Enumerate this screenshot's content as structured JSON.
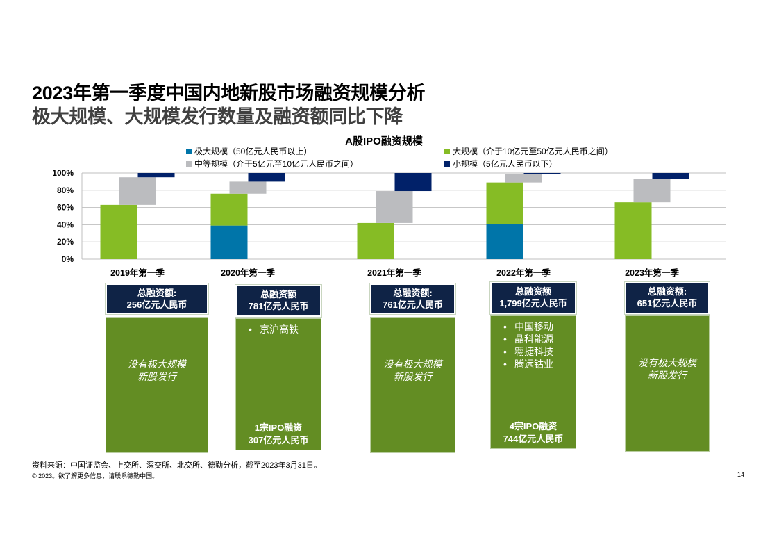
{
  "page": {
    "title": "2023年第一季度中国内地新股市场融资规模分析",
    "subtitle": "极大规模、大规模发行数量及融资额同比下降",
    "source": "资料来源：中国证监会、上交所、深交所、北交所、德勤分析，截至2023年3月31日。",
    "copyright": "© 2023。欲了解更多信息，请联系德勤中国。",
    "page_number": "14"
  },
  "chart_data": {
    "type": "bar",
    "subtype": "stacked-waterfall-100",
    "title": "A股IPO融资规模",
    "categories": [
      "2019年第一季",
      "2020年第一季",
      "2021年第一季",
      "2022年第一季",
      "2023年第一季"
    ],
    "ylim": [
      0,
      100
    ],
    "yticks": [
      "0%",
      "20%",
      "40%",
      "60%",
      "80%",
      "100%"
    ],
    "grid": true,
    "legend_position": "top",
    "series": [
      {
        "name": "极大规模（50亿元人民币以上）",
        "color": "#0075a9",
        "values": [
          0,
          39,
          0,
          41,
          0
        ]
      },
      {
        "name": "大规模（介于10亿元至50亿元人民币之间）",
        "color": "#86bc25",
        "values": [
          63,
          37,
          42,
          48,
          66
        ]
      },
      {
        "name": "中等规模（介于5亿元至10亿元人民币之间）",
        "color": "#bbbcbf",
        "values": [
          32,
          14,
          37,
          10,
          27
        ]
      },
      {
        "name": "小规模（5亿元人民币以下）",
        "color": "#012169",
        "values": [
          5,
          10,
          21,
          1,
          7
        ]
      }
    ]
  },
  "cards": [
    {
      "header_line1": "总融资额:",
      "header_line2": "256亿元人民币",
      "no_deal": [
        "没有极大规模",
        "新股发行"
      ],
      "bullets": [],
      "footer": []
    },
    {
      "header_line1": "总融资额",
      "header_line2": "781亿元人民币",
      "no_deal": [],
      "bullets": [
        "京沪高铁"
      ],
      "footer": [
        "1宗IPO融资",
        "307亿元人民币"
      ]
    },
    {
      "header_line1": "总融资额:",
      "header_line2": "761亿元人民币",
      "no_deal": [
        "没有极大规模",
        "新股发行"
      ],
      "bullets": [],
      "footer": []
    },
    {
      "header_line1": "总融资额",
      "header_line2": "1,799亿元人民币",
      "no_deal": [],
      "bullets": [
        "中国移动",
        "晶科能源",
        "翱捷科技",
        "腾远钴业"
      ],
      "footer": [
        "4宗IPO融资",
        "744亿元人民币"
      ]
    },
    {
      "header_line1": "总融资额:",
      "header_line2": "651亿元人民币",
      "no_deal": [
        "没有极大规模",
        "新股发行"
      ],
      "bullets": [],
      "footer": []
    }
  ]
}
